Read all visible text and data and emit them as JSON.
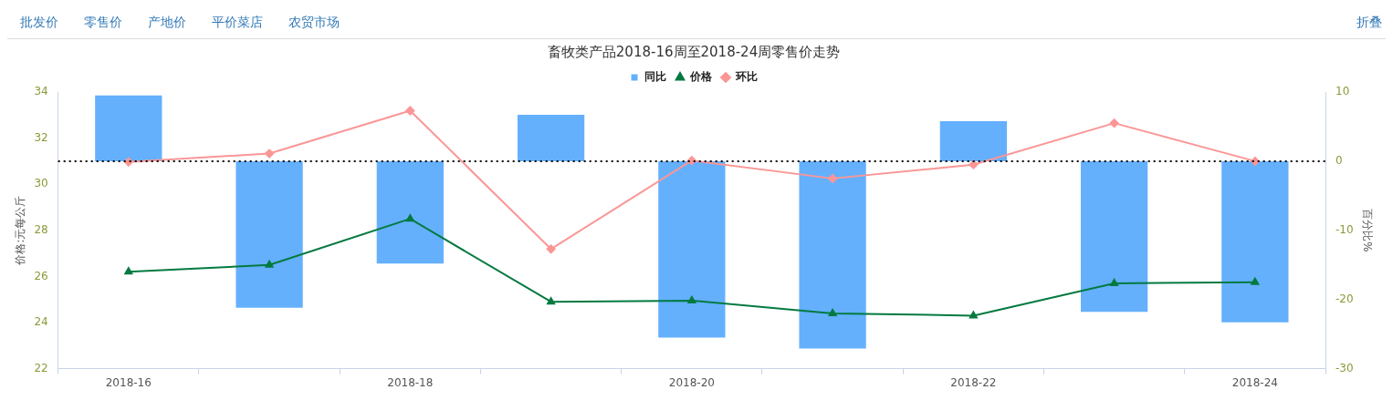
{
  "chart_data": {
    "type": "bar",
    "title": "畜牧类产品2018-16周至2018-24周零售价走势",
    "ylabel": "价格:元每公斤",
    "y2label": "百分比%",
    "categories": [
      "2018-16",
      null,
      "2018-18",
      null,
      "2018-20",
      null,
      "2018-22",
      null,
      "2018-24"
    ],
    "series": [
      {
        "name": "同比",
        "axis": "y2",
        "color": "#64b0fd",
        "values": [
          9.5,
          -21.2,
          -14.8,
          6.7,
          -25.5,
          -27.1,
          5.8,
          -21.8,
          -23.3
        ]
      },
      {
        "name": "价格",
        "type": "line",
        "axis": "y",
        "color": "#047a40",
        "marker": "triangle",
        "values": [
          26.2,
          26.5,
          28.5,
          24.9,
          24.95,
          24.4,
          24.3,
          25.7,
          25.75
        ]
      },
      {
        "name": "环比",
        "type": "line",
        "axis": "y2",
        "color": "#fb9696",
        "marker": "diamond",
        "values": [
          -0.1,
          1.1,
          7.3,
          -12.7,
          0.1,
          -2.5,
          -0.5,
          5.5,
          0
        ]
      }
    ],
    "ylim": [
      22,
      34
    ],
    "yticks": [
      22,
      24,
      26,
      28,
      30,
      32,
      34
    ],
    "y2lim": [
      -30,
      10
    ],
    "y2ticks": [
      -30,
      -20,
      -10,
      0,
      10
    ],
    "ref_lines": [
      {
        "axis": "y2",
        "value": 0,
        "color": "#000000",
        "line_style": "dotted"
      }
    ],
    "grid": false,
    "legend": "top",
    "annotations": [
      "批发价",
      "零售价",
      "产地价",
      "平价菜店",
      "农贸市场",
      "折叠"
    ]
  }
}
